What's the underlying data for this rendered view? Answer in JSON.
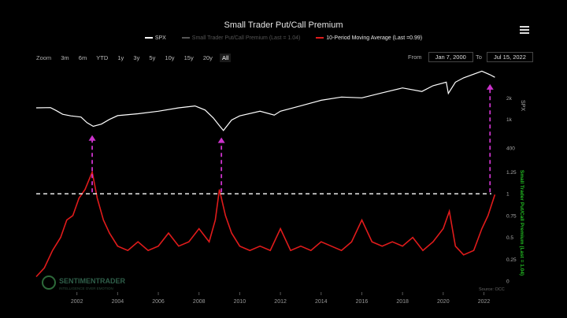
{
  "title": "Small Trader Put/Call Premium",
  "legend": [
    {
      "name": "SPX",
      "color": "#ffffff"
    },
    {
      "name": "Small Trader Put/Call Premium (Last = 1.04)",
      "color": "#555555"
    },
    {
      "name": "10-Period Moving Average (Last =0.99)",
      "color": "#e01b1b"
    }
  ],
  "zoom": {
    "label": "Zoom",
    "buttons": [
      "3m",
      "6m",
      "YTD",
      "1y",
      "3y",
      "5y",
      "10y",
      "15y",
      "20y",
      "All"
    ],
    "active": "All"
  },
  "range": {
    "from_label": "From",
    "from_value": "Jan 7, 2000",
    "to_label": "To",
    "to_value": "Jul 15, 2022"
  },
  "watermark": {
    "brand": "SENTIMENTRADER",
    "tagline": "INTELLIGENCE OVER EMOTION"
  },
  "source": "Source: OCC",
  "colors": {
    "background": "#000000",
    "spx": "#ffffff",
    "ma": "#e01b1b",
    "arrow": "#cc33cc",
    "threshold": "#ffffff",
    "right_axis_label": "#22bb22"
  },
  "chart_data": {
    "type": "line",
    "x_axis": {
      "ticks": [
        "2002",
        "2004",
        "2006",
        "2008",
        "2010",
        "2012",
        "2014",
        "2016",
        "2018",
        "2020",
        "2022"
      ]
    },
    "y_axis_upper": {
      "label": "SPX",
      "scale": "log",
      "ticks": [
        "2k",
        "1k",
        "400"
      ]
    },
    "y_axis_lower": {
      "label": "Small Trader Put/Call Premium (Last = 1.04)",
      "ticks": [
        "1.25",
        "1",
        "0.75",
        "0.5",
        "0.25",
        "0"
      ],
      "ylim": [
        0,
        1.3
      ]
    },
    "threshold": 1.0,
    "arrow_years": [
      2002.75,
      2009.1,
      2022.3
    ],
    "series": [
      {
        "name": "SPX",
        "axis": "upper",
        "points": [
          [
            2000.0,
            1450
          ],
          [
            2000.7,
            1460
          ],
          [
            2001.0,
            1320
          ],
          [
            2001.3,
            1180
          ],
          [
            2001.7,
            1120
          ],
          [
            2002.2,
            1080
          ],
          [
            2002.5,
            900
          ],
          [
            2002.8,
            800
          ],
          [
            2003.2,
            860
          ],
          [
            2003.6,
            1000
          ],
          [
            2004.0,
            1130
          ],
          [
            2005.0,
            1200
          ],
          [
            2006.0,
            1300
          ],
          [
            2007.0,
            1450
          ],
          [
            2007.8,
            1540
          ],
          [
            2008.3,
            1350
          ],
          [
            2008.7,
            1050
          ],
          [
            2009.0,
            820
          ],
          [
            2009.2,
            700
          ],
          [
            2009.6,
            980
          ],
          [
            2010.0,
            1120
          ],
          [
            2011.0,
            1300
          ],
          [
            2011.7,
            1150
          ],
          [
            2012.0,
            1300
          ],
          [
            2013.0,
            1550
          ],
          [
            2014.0,
            1850
          ],
          [
            2015.0,
            2050
          ],
          [
            2016.0,
            2000
          ],
          [
            2017.0,
            2350
          ],
          [
            2018.0,
            2750
          ],
          [
            2018.95,
            2450
          ],
          [
            2019.5,
            2950
          ],
          [
            2020.15,
            3300
          ],
          [
            2020.25,
            2300
          ],
          [
            2020.6,
            3300
          ],
          [
            2021.0,
            3800
          ],
          [
            2021.9,
            4700
          ],
          [
            2022.3,
            4200
          ],
          [
            2022.54,
            3860
          ]
        ]
      },
      {
        "name": "10-Period Moving Average",
        "axis": "lower",
        "points": [
          [
            2000.0,
            0.05
          ],
          [
            2000.4,
            0.15
          ],
          [
            2000.8,
            0.35
          ],
          [
            2001.2,
            0.5
          ],
          [
            2001.5,
            0.7
          ],
          [
            2001.8,
            0.75
          ],
          [
            2002.1,
            0.95
          ],
          [
            2002.4,
            1.05
          ],
          [
            2002.75,
            1.25
          ],
          [
            2003.0,
            0.95
          ],
          [
            2003.3,
            0.7
          ],
          [
            2003.6,
            0.55
          ],
          [
            2004.0,
            0.4
          ],
          [
            2004.5,
            0.35
          ],
          [
            2005.0,
            0.45
          ],
          [
            2005.5,
            0.35
          ],
          [
            2006.0,
            0.4
          ],
          [
            2006.5,
            0.55
          ],
          [
            2007.0,
            0.4
          ],
          [
            2007.5,
            0.45
          ],
          [
            2008.0,
            0.6
          ],
          [
            2008.5,
            0.45
          ],
          [
            2008.8,
            0.7
          ],
          [
            2009.0,
            1.05
          ],
          [
            2009.3,
            0.75
          ],
          [
            2009.6,
            0.55
          ],
          [
            2010.0,
            0.4
          ],
          [
            2010.5,
            0.35
          ],
          [
            2011.0,
            0.4
          ],
          [
            2011.5,
            0.35
          ],
          [
            2012.0,
            0.6
          ],
          [
            2012.5,
            0.35
          ],
          [
            2013.0,
            0.4
          ],
          [
            2013.5,
            0.35
          ],
          [
            2014.0,
            0.45
          ],
          [
            2014.5,
            0.4
          ],
          [
            2015.0,
            0.35
          ],
          [
            2015.5,
            0.45
          ],
          [
            2016.0,
            0.7
          ],
          [
            2016.5,
            0.45
          ],
          [
            2017.0,
            0.4
          ],
          [
            2017.5,
            0.45
          ],
          [
            2018.0,
            0.4
          ],
          [
            2018.5,
            0.5
          ],
          [
            2019.0,
            0.35
          ],
          [
            2019.5,
            0.45
          ],
          [
            2020.0,
            0.6
          ],
          [
            2020.3,
            0.8
          ],
          [
            2020.6,
            0.4
          ],
          [
            2021.0,
            0.3
          ],
          [
            2021.5,
            0.35
          ],
          [
            2021.9,
            0.6
          ],
          [
            2022.2,
            0.75
          ],
          [
            2022.54,
            0.99
          ]
        ]
      }
    ]
  }
}
